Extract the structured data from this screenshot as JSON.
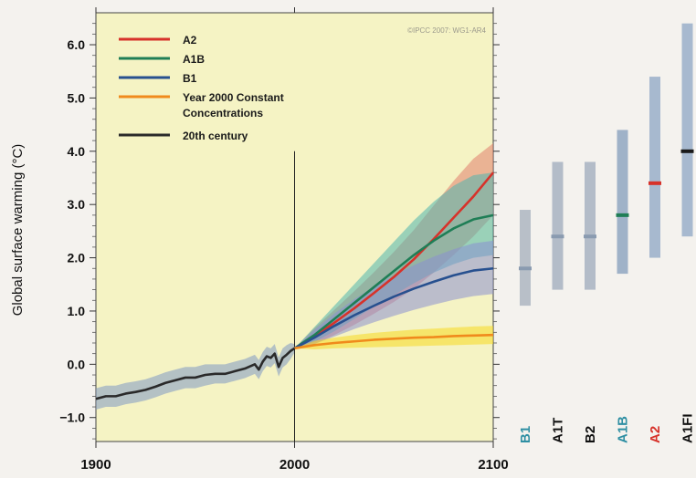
{
  "chart_data": {
    "type": "line",
    "watermark": "©IPCC 2007: WG1-AR4",
    "xlim": [
      1900,
      2100
    ],
    "ylim": [
      -1.45,
      6.6
    ],
    "xticks": [
      1900,
      2000,
      2100
    ],
    "yticks": [
      6.0,
      5.0,
      4.0,
      3.0,
      2.0,
      1.0,
      0.0,
      -1.0
    ],
    "ytick_labels": [
      "6.0",
      "5.0",
      "4.0",
      "3.0",
      "2.0",
      "1.0",
      "0.0",
      "−1.0"
    ],
    "ylabel": "Global surface warming (°C)",
    "xlabel": "",
    "marker_year": 2000,
    "legend_position": "top-left",
    "series": [
      {
        "name": "A2",
        "color": "#d7322a",
        "band_color": "#e07e6e",
        "x": [
          2000,
          2010,
          2020,
          2030,
          2040,
          2050,
          2060,
          2070,
          2080,
          2090,
          2100
        ],
        "values": [
          0.3,
          0.52,
          0.78,
          1.05,
          1.34,
          1.64,
          1.97,
          2.35,
          2.75,
          3.15,
          3.6
        ],
        "lower": [
          0.3,
          0.38,
          0.55,
          0.74,
          0.95,
          1.17,
          1.42,
          1.72,
          2.05,
          2.4,
          2.8
        ],
        "upper": [
          0.3,
          0.68,
          1.02,
          1.37,
          1.73,
          2.11,
          2.52,
          2.98,
          3.44,
          3.86,
          4.15
        ]
      },
      {
        "name": "A1B",
        "color": "#1f7e56",
        "band_color": "#4fb4ae",
        "x": [
          2000,
          2010,
          2020,
          2030,
          2040,
          2050,
          2060,
          2070,
          2080,
          2090,
          2100
        ],
        "values": [
          0.3,
          0.55,
          0.85,
          1.15,
          1.45,
          1.75,
          2.05,
          2.32,
          2.55,
          2.72,
          2.8
        ],
        "lower": [
          0.3,
          0.42,
          0.62,
          0.85,
          1.08,
          1.3,
          1.52,
          1.72,
          1.88,
          2.0,
          2.05
        ],
        "upper": [
          0.3,
          0.7,
          1.1,
          1.5,
          1.9,
          2.3,
          2.7,
          3.05,
          3.35,
          3.55,
          3.6
        ]
      },
      {
        "name": "B1",
        "color": "#27508f",
        "band_color": "#8b8fd2",
        "x": [
          2000,
          2010,
          2020,
          2030,
          2040,
          2050,
          2060,
          2070,
          2080,
          2090,
          2100
        ],
        "values": [
          0.3,
          0.5,
          0.72,
          0.92,
          1.1,
          1.27,
          1.42,
          1.55,
          1.67,
          1.76,
          1.8
        ],
        "lower": [
          0.3,
          0.38,
          0.52,
          0.66,
          0.79,
          0.91,
          1.02,
          1.12,
          1.21,
          1.28,
          1.32
        ],
        "upper": [
          0.3,
          0.65,
          0.95,
          1.22,
          1.46,
          1.67,
          1.86,
          2.02,
          2.16,
          2.27,
          2.32
        ]
      },
      {
        "name": "Year 2000 Constant Concentrations",
        "label_lines": [
          "Year 2000 Constant",
          "Concentrations"
        ],
        "color": "#f08a1c",
        "band_color": "#f6d820",
        "x": [
          2000,
          2010,
          2020,
          2030,
          2040,
          2050,
          2060,
          2070,
          2080,
          2090,
          2100
        ],
        "values": [
          0.3,
          0.36,
          0.4,
          0.43,
          0.46,
          0.48,
          0.5,
          0.51,
          0.53,
          0.54,
          0.55
        ],
        "lower": [
          0.3,
          0.28,
          0.3,
          0.31,
          0.32,
          0.33,
          0.34,
          0.35,
          0.36,
          0.37,
          0.38
        ],
        "upper": [
          0.3,
          0.44,
          0.5,
          0.55,
          0.59,
          0.62,
          0.65,
          0.67,
          0.69,
          0.71,
          0.72
        ]
      },
      {
        "name": "20th century",
        "color": "#2a2a2a",
        "band_color": "#7e97c5",
        "x": [
          1900,
          1905,
          1910,
          1915,
          1920,
          1925,
          1930,
          1935,
          1940,
          1945,
          1950,
          1955,
          1960,
          1965,
          1970,
          1975,
          1980,
          1982,
          1984,
          1986,
          1988,
          1990,
          1992,
          1994,
          1996,
          1998,
          2000
        ],
        "values": [
          -0.65,
          -0.6,
          -0.6,
          -0.55,
          -0.52,
          -0.48,
          -0.42,
          -0.35,
          -0.3,
          -0.25,
          -0.25,
          -0.2,
          -0.18,
          -0.18,
          -0.13,
          -0.08,
          0.0,
          -0.1,
          0.05,
          0.15,
          0.12,
          0.2,
          -0.05,
          0.12,
          0.18,
          0.25,
          0.3
        ],
        "lower": [
          -0.85,
          -0.8,
          -0.8,
          -0.75,
          -0.72,
          -0.68,
          -0.62,
          -0.55,
          -0.5,
          -0.45,
          -0.45,
          -0.4,
          -0.36,
          -0.36,
          -0.31,
          -0.26,
          -0.18,
          -0.28,
          -0.13,
          -0.03,
          -0.06,
          0.02,
          -0.23,
          -0.06,
          0.0,
          0.1,
          0.22
        ],
        "upper": [
          -0.45,
          -0.4,
          -0.4,
          -0.35,
          -0.32,
          -0.28,
          -0.22,
          -0.15,
          -0.1,
          -0.05,
          -0.05,
          0.0,
          0.0,
          0.0,
          0.05,
          0.1,
          0.18,
          0.08,
          0.23,
          0.33,
          0.3,
          0.38,
          0.13,
          0.3,
          0.36,
          0.4,
          0.38
        ]
      }
    ],
    "scenario_ranges": [
      {
        "name": "B1",
        "label_color": "#2e8fa3",
        "bar_color": "#b8bfc8",
        "mark_color": "#8a9bb0",
        "low": 1.1,
        "best": 1.8,
        "high": 2.9
      },
      {
        "name": "A1T",
        "label_color": "#111111",
        "bar_color": "#b3bcc8",
        "mark_color": "#8a9bb0",
        "low": 1.4,
        "best": 2.4,
        "high": 3.8
      },
      {
        "name": "B2",
        "label_color": "#111111",
        "bar_color": "#b3bcc8",
        "mark_color": "#8a9bb0",
        "low": 1.4,
        "best": 2.4,
        "high": 3.8
      },
      {
        "name": "A1B",
        "label_color": "#2e8fa3",
        "bar_color": "#9fb2c8",
        "mark_color": "#1f7e56",
        "low": 1.7,
        "best": 2.8,
        "high": 4.4
      },
      {
        "name": "A2",
        "label_color": "#d7322a",
        "bar_color": "#a7b9cf",
        "mark_color": "#d7322a",
        "low": 2.0,
        "best": 3.4,
        "high": 5.4
      },
      {
        "name": "A1FI",
        "label_color": "#111111",
        "bar_color": "#a7b9cf",
        "mark_color": "#1a1a1a",
        "low": 2.4,
        "best": 4.0,
        "high": 6.4
      }
    ]
  }
}
